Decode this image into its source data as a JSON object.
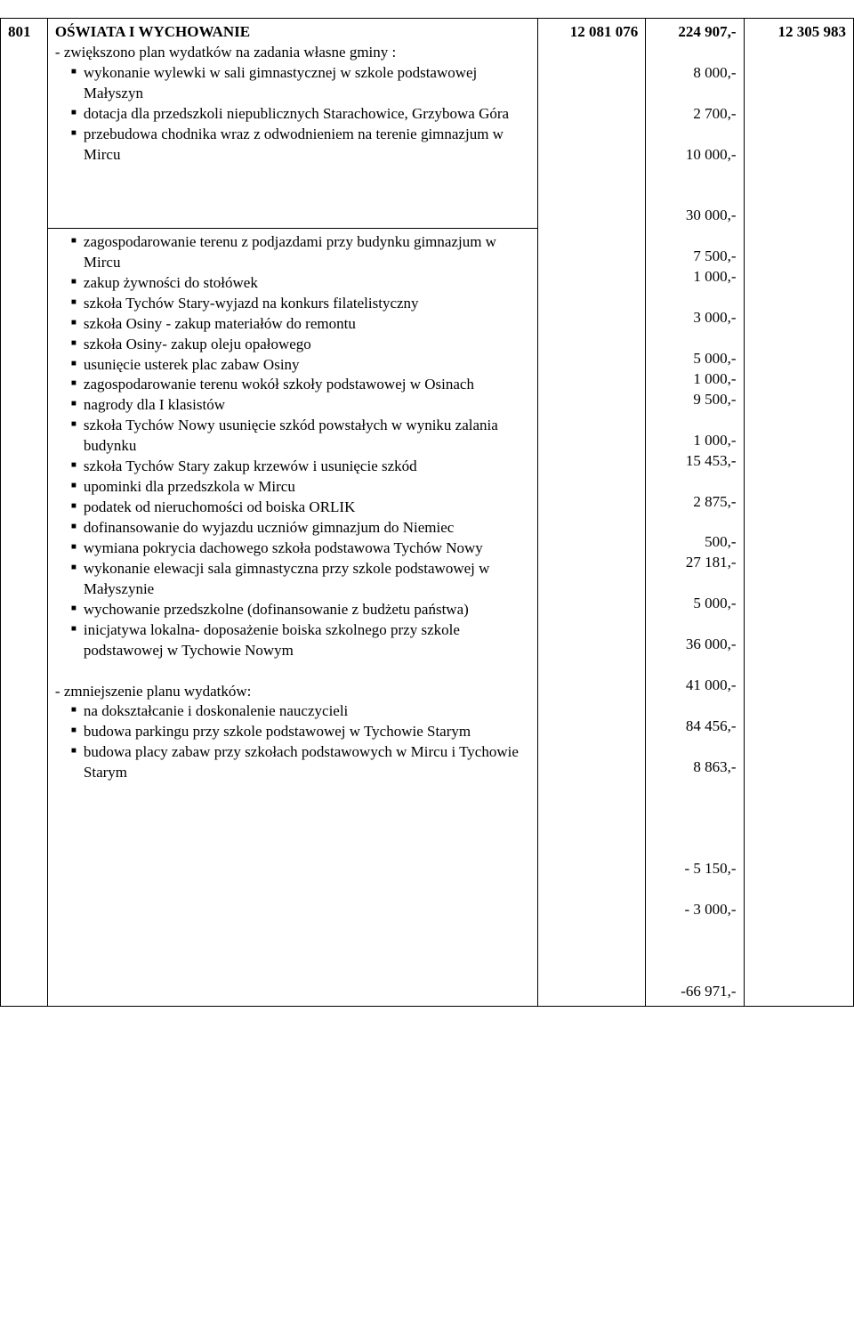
{
  "row": {
    "code": "801",
    "title": "OŚWIATA  I  WYCHOWANIE",
    "after_title": "- zwiększono plan wydatków na zadania własne gminy :",
    "col_a": "12 081 076",
    "col_b": "224 907,-",
    "col_c": "12 305 983"
  },
  "upper_items": [
    {
      "text": "wykonanie wylewki w sali gimnastycznej w szkole podstawowej  Małyszyn",
      "amount": "8 000,-",
      "lines": 2
    },
    {
      "text": "dotacja dla przedszkoli niepublicznych Starachowice, Grzybowa Góra",
      "amount": "2 700,-",
      "lines": 2
    },
    {
      "text": "przebudowa chodnika wraz z odwodnieniem na terenie gimnazjum w Mircu",
      "amount": "10 000,-",
      "lines": 3
    }
  ],
  "lower_items": [
    {
      "text": "zagospodarowanie terenu z podjazdami przy budynku gimnazjum w Mircu",
      "amount": "30 000,-",
      "lines": 2
    },
    {
      "text": "zakup żywności do stołówek",
      "amount": "7 500,-",
      "lines": 1
    },
    {
      "text": "szkoła Tychów Stary-wyjazd na konkurs filatelistyczny",
      "amount": "1 000,-",
      "lines": 2
    },
    {
      "text": "szkoła Osiny  - zakup materiałów do remontu",
      "amount": "3 000,-",
      "lines": 2
    },
    {
      "text": "szkoła Osiny- zakup oleju opałowego",
      "amount": "5 000,-",
      "lines": 1
    },
    {
      "text": "usunięcie usterek plac zabaw Osiny",
      "amount": "1 000,-",
      "lines": 1
    },
    {
      "text": "zagospodarowanie terenu wokół szkoły podstawowej w Osinach",
      "amount": "9 500,-",
      "lines": 2
    },
    {
      "text": "nagrody dla I klasistów",
      "amount": "1 000,-",
      "lines": 1
    },
    {
      "text": "szkoła Tychów Nowy usunięcie szkód powstałych w wyniku zalania budynku",
      "amount": "15 453,-",
      "lines": 2
    },
    {
      "text": "szkoła Tychów Stary zakup krzewów i usunięcie szkód",
      "amount": "2 875,-",
      "lines": 2
    },
    {
      "text": "upominki dla przedszkola w Mircu",
      "amount": "500,-",
      "lines": 1
    },
    {
      "text": "podatek od nieruchomości od boiska ORLIK",
      "amount": "27 181,-",
      "lines": 2
    },
    {
      "text": "dofinansowanie do wyjazdu uczniów gimnazjum do Niemiec",
      "amount": "5 000,-",
      "lines": 2
    },
    {
      "text": "wymiana pokrycia dachowego szkoła podstawowa Tychów Nowy",
      "amount": "36 000,-",
      "lines": 2
    },
    {
      "text": "wykonanie elewacji sala gimnastyczna przy szkole podstawowej w Małyszynie",
      "amount": "41 000,-",
      "lines": 2
    },
    {
      "text": "wychowanie przedszkolne (dofinansowanie z budżetu państwa)",
      "amount": "84 456,-",
      "lines": 2
    },
    {
      "text": "inicjatywa lokalna- doposażenie boiska szkolnego przy szkole podstawowej w Tychowie Nowym",
      "amount": "8 863,-",
      "lines": 3
    }
  ],
  "bottom_heading": "- zmniejszenie planu wydatków:",
  "bottom_items": [
    {
      "text": "na dokształcanie i doskonalenie nauczycieli",
      "amount": "- 5 150,-",
      "lines": 2
    },
    {
      "text": "budowa parkingu przy szkole podstawowej w Tychowie Starym",
      "amount": "-   3 000,-",
      "lines": 2
    },
    {
      "text": "budowa placy zabaw przy szkołach podstawowych w Mircu i Tychowie Starym",
      "amount": "-66 971,-",
      "lines": 3,
      "amount_line": 3
    }
  ]
}
